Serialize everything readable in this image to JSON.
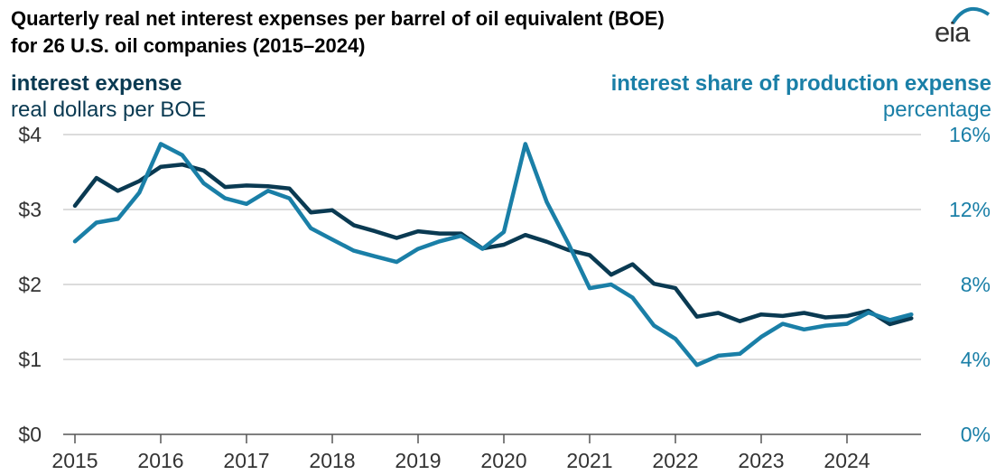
{
  "title_line1": "Quarterly real net interest expenses per barrel of oil equivalent (BOE)",
  "title_line2": "for 26 U.S. oil companies (2015–2024)",
  "logo_text": "eia",
  "left_axis": {
    "title": "interest expense",
    "subtitle": "real dollars per BOE"
  },
  "right_axis": {
    "title": "interest share of production expense",
    "subtitle": "percentage"
  },
  "colors": {
    "expense": "#0a3a52",
    "share": "#1a7fa7",
    "grid": "#d0d0d0",
    "text": "#333333"
  },
  "chart_data": {
    "type": "line",
    "x_labels": [
      "2015",
      "2016",
      "2017",
      "2018",
      "2019",
      "2020",
      "2021",
      "2022",
      "2023",
      "2024"
    ],
    "y_left": {
      "ylim": [
        0,
        4
      ],
      "ticks": [
        "$0",
        "$1",
        "$2",
        "$3",
        "$4"
      ]
    },
    "y_right": {
      "ylim": [
        0,
        16
      ],
      "ticks": [
        "0%",
        "4%",
        "8%",
        "12%",
        "16%"
      ]
    },
    "grid": true,
    "series": [
      {
        "axis": "left",
        "values": [
          3.05,
          3.42,
          3.25,
          3.38,
          3.57,
          3.6,
          3.52,
          3.3,
          3.32,
          3.31,
          3.28,
          2.96,
          2.99,
          2.79,
          2.71,
          2.62,
          2.71,
          2.68,
          2.68,
          2.48,
          2.53,
          2.66,
          2.57,
          2.46,
          2.39,
          2.13,
          2.27,
          2.01,
          1.95,
          1.57,
          1.62,
          1.51,
          1.6,
          1.58,
          1.62,
          1.56,
          1.58,
          1.65,
          1.47,
          1.55
        ]
      },
      {
        "axis": "right",
        "values": [
          10.3,
          11.3,
          11.5,
          12.9,
          15.5,
          14.9,
          13.4,
          12.6,
          12.3,
          13.0,
          12.6,
          11.0,
          10.4,
          9.8,
          9.5,
          9.2,
          9.9,
          10.3,
          10.6,
          9.9,
          10.8,
          15.5,
          12.4,
          10.2,
          7.8,
          8.0,
          7.3,
          5.8,
          5.1,
          3.7,
          4.2,
          4.3,
          5.2,
          5.9,
          5.6,
          5.8,
          5.9,
          6.5,
          6.1,
          6.4
        ]
      }
    ]
  }
}
